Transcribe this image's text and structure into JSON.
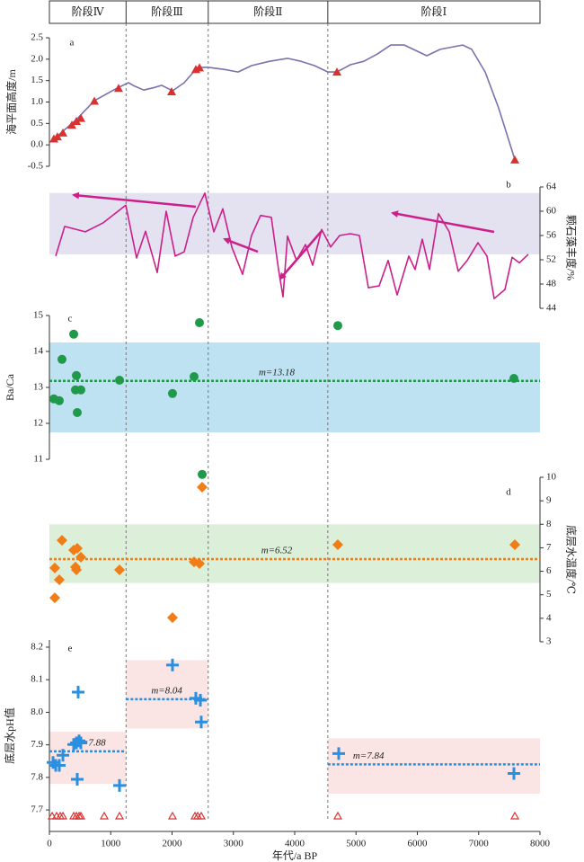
{
  "stages": {
    "labels": [
      "阶段Ⅳ",
      "阶段Ⅲ",
      "阶段Ⅱ",
      "阶段Ⅰ"
    ],
    "boundaries": [
      1250,
      2590,
      4540
    ]
  },
  "chart_data": [
    {
      "type": "line",
      "panel_label": "a",
      "ylabel": "海平面高度/m",
      "ylim": [
        -0.5,
        2.5
      ],
      "yticks": [
        -0.5,
        {
          "value": 0,
          "label": "0.0"
        },
        0.5,
        {
          "value": 1,
          "label": "1.0"
        },
        1.5,
        {
          "value": 2,
          "label": "2.0"
        },
        2.5
      ],
      "series": [
        {
          "kind": "line",
          "color": "#7b72ad",
          "x": [
            29,
            440,
            733,
            1099,
            1289,
            1392,
            1538,
            1714,
            1832,
            2007,
            2198,
            2418,
            2593,
            2857,
            3077,
            3297,
            3590,
            3883,
            4103,
            4322,
            4542,
            4689,
            4908,
            5128,
            5348,
            5568,
            5788,
            5934,
            6154,
            6374,
            6593,
            6740,
            6886,
            7106,
            7326,
            7590
          ],
          "values": [
            0.08,
            0.59,
            1.03,
            1.32,
            1.45,
            1.37,
            1.28,
            1.34,
            1.39,
            1.26,
            1.45,
            1.81,
            1.81,
            1.76,
            1.7,
            1.85,
            1.95,
            2.02,
            1.95,
            1.85,
            1.7,
            1.7,
            1.87,
            1.95,
            2.12,
            2.33,
            2.33,
            2.23,
            2.08,
            2.23,
            2.29,
            2.33,
            2.23,
            1.7,
            0.86,
            -0.34
          ]
        },
        {
          "kind": "scatter",
          "marker": "triangle",
          "color": "#d93030",
          "x": [
            73,
            130,
            220,
            366,
            440,
            513,
            733,
            1128,
            1993,
            2388,
            2447,
            4689,
            7590
          ],
          "values": [
            0.14,
            0.19,
            0.28,
            0.46,
            0.55,
            0.62,
            1.02,
            1.32,
            1.24,
            1.76,
            1.8,
            1.7,
            -0.35
          ]
        }
      ]
    },
    {
      "type": "line",
      "panel_label": "b",
      "ylabel": "颗石藻丰度/%",
      "ylim": [
        44,
        64
      ],
      "yticks": [
        44,
        48,
        52,
        56,
        60,
        64
      ],
      "band_color": "#e4e2f0",
      "bands": [
        {
          "y": [
            52.9,
            63
          ]
        }
      ],
      "series": [
        {
          "kind": "line",
          "color": "#cc1f8a",
          "x": [
            103,
            249,
            586,
            879,
            1245,
            1421,
            1568,
            1758,
            1905,
            2051,
            2198,
            2344,
            2535,
            2681,
            2828,
            2974,
            3150,
            3297,
            3443,
            3619,
            3736,
            3810,
            3883,
            4029,
            4176,
            4293,
            4440,
            4586,
            4733,
            4908,
            5055,
            5201,
            5377,
            5524,
            5670,
            5861,
            5963,
            6081,
            6198,
            6344,
            6520,
            6667,
            6813,
            6989,
            7136,
            7253,
            7429,
            7546,
            7663,
            7810
          ],
          "values": [
            52.6,
            57.5,
            56.6,
            58.1,
            61.0,
            52.3,
            56.7,
            49.9,
            60.0,
            52.6,
            53.3,
            59.0,
            63.0,
            56.6,
            60.4,
            54.1,
            49.6,
            56.0,
            59.3,
            59.0,
            50.4,
            45.9,
            55.9,
            51.9,
            54.5,
            51.1,
            57.0,
            54.1,
            56.0,
            56.3,
            56.0,
            47.4,
            47.7,
            51.9,
            46.2,
            52.6,
            50.4,
            55.4,
            50.4,
            59.6,
            56.6,
            50.1,
            51.9,
            54.8,
            52.6,
            45.6,
            47.1,
            52.4,
            51.5,
            52.9
          ]
        }
      ]
    },
    {
      "type": "scatter",
      "panel_label": "c",
      "ylabel": "Ba/Ca",
      "ylim": [
        11,
        15
      ],
      "yticks": [
        11,
        12,
        13,
        14,
        15
      ],
      "band_color": "#bfe2f3",
      "bands": [
        {
          "y": [
            11.75,
            14.25
          ]
        }
      ],
      "means": [
        {
          "value": 13.18,
          "label": "m=13.18"
        }
      ],
      "mean_color": "#1f9a4a",
      "series": [
        {
          "kind": "scatter",
          "marker": "circle",
          "color": "#1f9a4a",
          "x": [
            73,
            161,
            205,
            396,
            425,
            440,
            454,
            513,
            1143,
            2007,
            2359,
            2447,
            2491,
            4703,
            7575
          ],
          "values": [
            12.68,
            12.63,
            13.78,
            14.48,
            12.93,
            13.33,
            12.3,
            12.93,
            13.2,
            12.83,
            13.3,
            14.8,
            10.58,
            14.72,
            13.25
          ]
        }
      ]
    },
    {
      "type": "scatter",
      "panel_label": "d",
      "ylabel": "底层水温度/℃",
      "ylim": [
        3,
        10
      ],
      "yticks": [
        3,
        4,
        5,
        6,
        7,
        8,
        9,
        10
      ],
      "band_color": "#dcefd8",
      "bands": [
        {
          "y": [
            5.5,
            8
          ]
        }
      ],
      "means": [
        {
          "value": 6.52,
          "label": "m=6.52"
        }
      ],
      "mean_color": "#f07d16",
      "series": [
        {
          "kind": "scatter",
          "marker": "diamond",
          "color": "#f07d16",
          "x": [
            88,
            88,
            161,
            205,
            396,
            425,
            440,
            454,
            513,
            1143,
            2007,
            2359,
            2447,
            2491,
            4703,
            7590
          ],
          "values": [
            4.87,
            6.14,
            5.64,
            7.32,
            6.9,
            6.18,
            6.06,
            6.98,
            6.6,
            6.06,
            4.03,
            6.4,
            6.33,
            9.58,
            7.13,
            7.13
          ]
        }
      ]
    },
    {
      "type": "scatter",
      "panel_label": "e",
      "ylabel": "底层水pH值",
      "xlabel": "年代/a BP",
      "xlim": [
        0,
        8000
      ],
      "xticks": [
        0,
        1000,
        2000,
        3000,
        4000,
        5000,
        6000,
        7000,
        8000
      ],
      "ylim": [
        7.634,
        8.222
      ],
      "yticks": [
        7.7,
        7.8,
        7.9,
        {
          "value": 8,
          "label": "8.0"
        },
        8.1,
        8.2
      ],
      "band_color": "#fbe4e4",
      "bands": [
        {
          "x": [
            0,
            1250
          ],
          "y": [
            7.78,
            7.94
          ]
        },
        {
          "x": [
            1250,
            2590
          ],
          "y": [
            7.95,
            8.16
          ]
        },
        {
          "x": [
            4540,
            8000
          ],
          "y": [
            7.75,
            7.92
          ]
        }
      ],
      "means": [
        {
          "value": 7.88,
          "label": "m=7.88",
          "x": [
            0,
            1250
          ]
        },
        {
          "value": 8.04,
          "label": "m=8.04",
          "x": [
            1250,
            2590
          ]
        },
        {
          "value": 7.84,
          "label": "m=7.84",
          "x": [
            4540,
            8000
          ]
        }
      ],
      "mean_color": "#2b8fe0",
      "age_markers": {
        "color": "#d93030",
        "x": [
          44,
          117,
          176,
          220,
          396,
          440,
          484,
          513,
          894,
          1143,
          2007,
          2374,
          2418,
          2476,
          4703,
          7590
        ]
      },
      "series": [
        {
          "kind": "scatter",
          "marker": "cross",
          "color": "#2b8fe0",
          "x": [
            59,
            103,
            161,
            220,
            396,
            440,
            454,
            469,
            484,
            513,
            1143,
            2007,
            2388,
            2462,
            2476,
            4718,
            7575
          ],
          "values": [
            7.846,
            7.837,
            7.837,
            7.868,
            7.901,
            7.906,
            7.794,
            8.062,
            7.912,
            7.906,
            7.775,
            8.145,
            8.043,
            8.037,
            7.97,
            7.873,
            7.812
          ]
        }
      ]
    }
  ]
}
